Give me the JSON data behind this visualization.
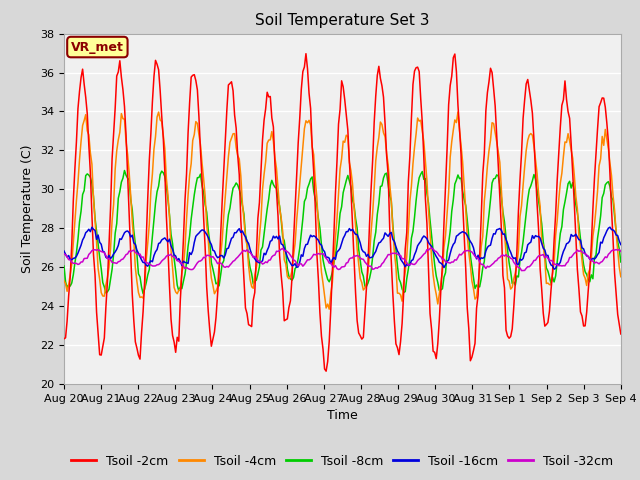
{
  "title": "Soil Temperature Set 3",
  "xlabel": "Time",
  "ylabel": "Soil Temperature (C)",
  "ylim": [
    20,
    38
  ],
  "background_color": "#d8d8d8",
  "plot_bg_color": "#f0f0f0",
  "grid_color": "white",
  "series": [
    {
      "label": "Tsoil -2cm",
      "color": "#ff0000"
    },
    {
      "label": "Tsoil -4cm",
      "color": "#ff8800"
    },
    {
      "label": "Tsoil -8cm",
      "color": "#00cc00"
    },
    {
      "label": "Tsoil -16cm",
      "color": "#0000dd"
    },
    {
      "label": "Tsoil -32cm",
      "color": "#cc00cc"
    }
  ],
  "xtick_labels": [
    "Aug 20",
    "Aug 21",
    "Aug 22",
    "Aug 23",
    "Aug 24",
    "Aug 25",
    "Aug 26",
    "Aug 27",
    "Aug 28",
    "Aug 29",
    "Aug 30",
    "Aug 31",
    "Sep 1",
    "Sep 2",
    "Sep 3",
    "Sep 4"
  ],
  "ytick_labels": [
    20,
    22,
    24,
    26,
    28,
    30,
    32,
    34,
    36,
    38
  ],
  "annotation_text": "VR_met",
  "title_fontsize": 11,
  "axis_label_fontsize": 9,
  "tick_fontsize": 8,
  "legend_fontsize": 9
}
